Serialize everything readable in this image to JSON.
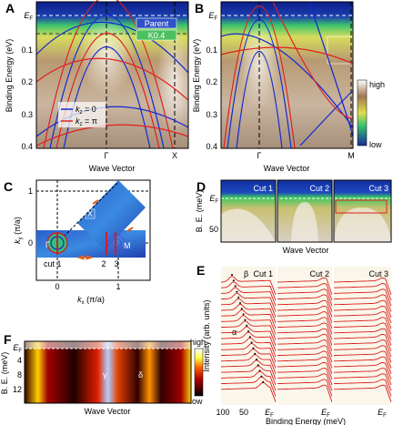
{
  "ef": {
    "base": "E",
    "sub": "F"
  },
  "panel_a": {
    "label": "A",
    "y_axis_label": "Binding Energy (eV)",
    "y_ticks": [
      "0.1",
      "0.2",
      "0.3",
      "0.4"
    ],
    "x_ticks": [
      "Γ",
      "X"
    ],
    "x_axis_label": "Wave Vector",
    "legend_boxes": [
      "Parent",
      "K0.4"
    ],
    "legend": [
      {
        "k": "k",
        "sub": "z",
        "rest": " = 0"
      },
      {
        "k": "k",
        "sub": "z",
        "rest": " = π"
      }
    ]
  },
  "panel_b": {
    "label": "B",
    "y_axis_label": "Binding Energy (eV)",
    "y_ticks": [
      "0.1",
      "0.2",
      "0.3",
      "0.4"
    ],
    "x_ticks": [
      "Γ",
      "M"
    ],
    "x_axis_label": "Wave Vector",
    "colorbar": [
      "high",
      "low"
    ]
  },
  "panel_c": {
    "label": "C",
    "y_axis_label": {
      "k": "k",
      "sub": "y",
      "rest": " (π/a)"
    },
    "x_axis_label": {
      "k": "k",
      "sub": "x",
      "rest": " (π/a)"
    },
    "y_ticks": [
      "1",
      "0"
    ],
    "x_ticks": [
      "0",
      "1"
    ],
    "points": [
      "Γ",
      "X",
      "M"
    ],
    "cuts": [
      "cut 1",
      "2",
      "3"
    ]
  },
  "panel_d": {
    "label": "D",
    "y_axis_label": "B. E. (meV)",
    "y_ticks": [
      "50"
    ],
    "cuts": [
      "Cut 1",
      "Cut 2",
      "Cut 3"
    ],
    "x_axis_label": "Wave Vector"
  },
  "panel_e": {
    "label": "E",
    "y_axis_label": "Intensity (arb. units)",
    "x_axis_label": "Binding Energy (meV)",
    "x_ticks": [
      "100",
      "50"
    ],
    "cuts": [
      "Cut 1",
      "Cut 2",
      "Cut 3"
    ],
    "peaks": [
      "β",
      "α"
    ]
  },
  "panel_f": {
    "label": "F",
    "y_axis_label": "B. E. (meV)",
    "y_ticks": [
      "4",
      "8",
      "12"
    ],
    "x_axis_label": "Wave Vector",
    "bands": [
      "γ",
      "δ"
    ],
    "colorbar": [
      "high",
      "low"
    ]
  }
}
